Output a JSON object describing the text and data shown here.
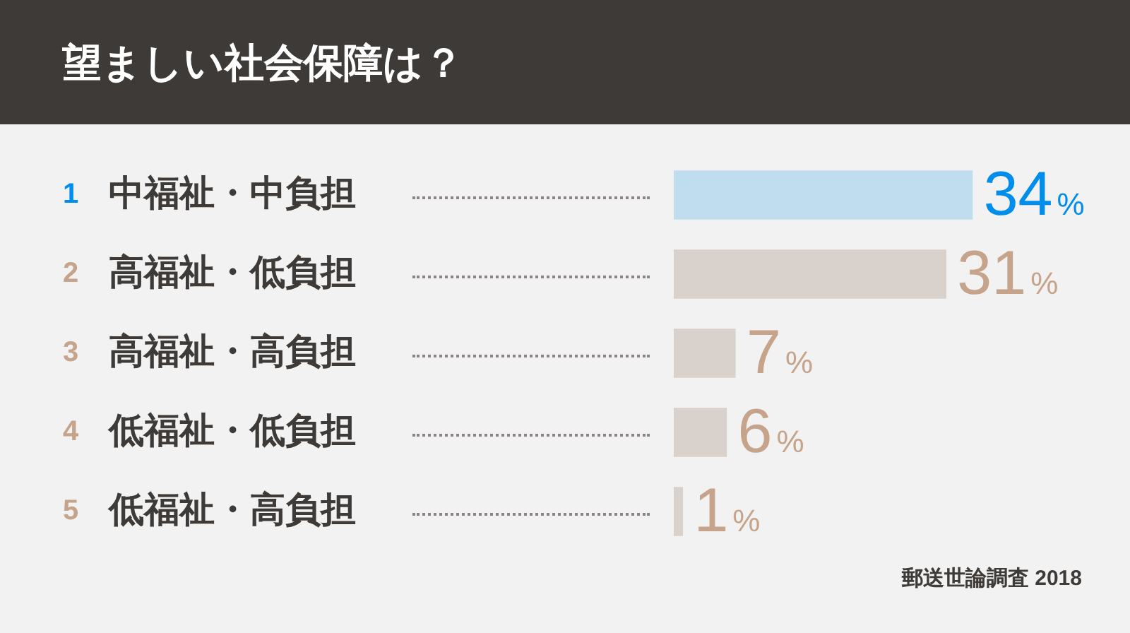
{
  "chart_data": {
    "type": "bar",
    "orientation": "horizontal",
    "title": "望ましい社会保障は？",
    "categories": [
      "中福祉・中負担",
      "高福祉・低負担",
      "高福祉・高負担",
      "低福祉・低負担",
      "低福祉・高負担"
    ],
    "values": [
      34,
      31,
      7,
      6,
      1
    ],
    "value_labels": [
      "34%",
      "31%",
      "7%",
      "6%",
      "1%"
    ],
    "colors": [
      "#c0dcef",
      "#d9d1cb",
      "#d9d1cb",
      "#d9d1cb",
      "#d9d1cb"
    ],
    "annotations": [
      "1",
      "2",
      "3",
      "4",
      "5",
      "郵送世論調査 2018"
    ]
  }
}
